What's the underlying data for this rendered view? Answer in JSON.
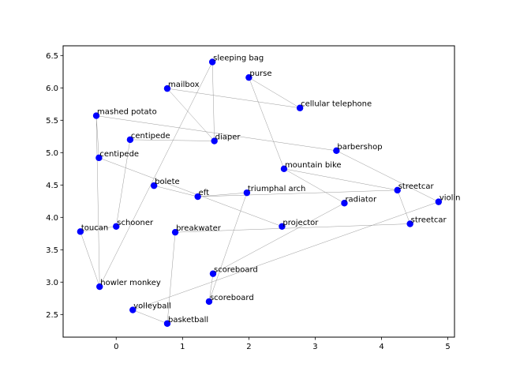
{
  "chart_data": {
    "type": "scatter",
    "title": "",
    "xlabel": "",
    "ylabel": "",
    "xlim": [
      -0.8,
      5.1
    ],
    "ylim": [
      2.15,
      6.65
    ],
    "xticks": [
      0,
      1,
      2,
      3,
      4,
      5
    ],
    "yticks": [
      2.5,
      3.0,
      3.5,
      4.0,
      4.5,
      5.0,
      5.5,
      6.0,
      6.5
    ],
    "xtick_labels": [
      "0",
      "1",
      "2",
      "3",
      "4",
      "5"
    ],
    "ytick_labels": [
      "2.5",
      "3.0",
      "3.5",
      "4.0",
      "4.5",
      "5.0",
      "5.5",
      "6.0",
      "6.5"
    ],
    "grid": false,
    "point_color": "#0000ff",
    "edge_color": "#999999",
    "points": [
      {
        "label": "sleeping bag",
        "x": 1.45,
        "y": 6.4
      },
      {
        "label": "purse",
        "x": 2.0,
        "y": 6.16
      },
      {
        "label": "mailbox",
        "x": 0.77,
        "y": 5.99
      },
      {
        "label": "cellular telephone",
        "x": 2.77,
        "y": 5.69
      },
      {
        "label": "mashed potato",
        "x": -0.3,
        "y": 5.57
      },
      {
        "label": "centipede",
        "x": 0.21,
        "y": 5.2
      },
      {
        "label": "diaper",
        "x": 1.48,
        "y": 5.18
      },
      {
        "label": "barbershop",
        "x": 3.32,
        "y": 5.03
      },
      {
        "label": "centipede",
        "x": -0.26,
        "y": 4.92
      },
      {
        "label": "mountain bike",
        "x": 2.53,
        "y": 4.75
      },
      {
        "label": "bolete",
        "x": 0.57,
        "y": 4.49
      },
      {
        "label": "streetcar",
        "x": 4.24,
        "y": 4.42
      },
      {
        "label": "triumphal arch",
        "x": 1.97,
        "y": 4.38
      },
      {
        "label": "eft",
        "x": 1.23,
        "y": 4.32
      },
      {
        "label": "violin",
        "x": 4.86,
        "y": 4.24
      },
      {
        "label": "radiator",
        "x": 3.44,
        "y": 4.22
      },
      {
        "label": "streetcar",
        "x": 4.43,
        "y": 3.9
      },
      {
        "label": "schooner",
        "x": 0.0,
        "y": 3.86
      },
      {
        "label": "projector",
        "x": 2.5,
        "y": 3.86
      },
      {
        "label": "toucan",
        "x": -0.54,
        "y": 3.78
      },
      {
        "label": "breakwater",
        "x": 0.89,
        "y": 3.77
      },
      {
        "label": "scoreboard",
        "x": 1.46,
        "y": 3.13
      },
      {
        "label": "howler monkey",
        "x": -0.25,
        "y": 2.93
      },
      {
        "label": "scoreboard",
        "x": 1.4,
        "y": 2.7
      },
      {
        "label": "volleyball",
        "x": 0.25,
        "y": 2.57
      },
      {
        "label": "basketball",
        "x": 0.77,
        "y": 2.36
      }
    ],
    "edges": [
      [
        0,
        6
      ],
      [
        0,
        22
      ],
      [
        1,
        3
      ],
      [
        1,
        9
      ],
      [
        2,
        3
      ],
      [
        2,
        6
      ],
      [
        4,
        7
      ],
      [
        4,
        8
      ],
      [
        4,
        22
      ],
      [
        5,
        6
      ],
      [
        8,
        18
      ],
      [
        7,
        14
      ],
      [
        9,
        11
      ],
      [
        9,
        15
      ],
      [
        10,
        13
      ],
      [
        13,
        12
      ],
      [
        13,
        11
      ],
      [
        12,
        23
      ],
      [
        11,
        16
      ],
      [
        19,
        22
      ],
      [
        19,
        17
      ],
      [
        17,
        5
      ],
      [
        20,
        16
      ],
      [
        20,
        25
      ],
      [
        21,
        15
      ],
      [
        21,
        23
      ],
      [
        24,
        14
      ],
      [
        24,
        25
      ]
    ]
  }
}
